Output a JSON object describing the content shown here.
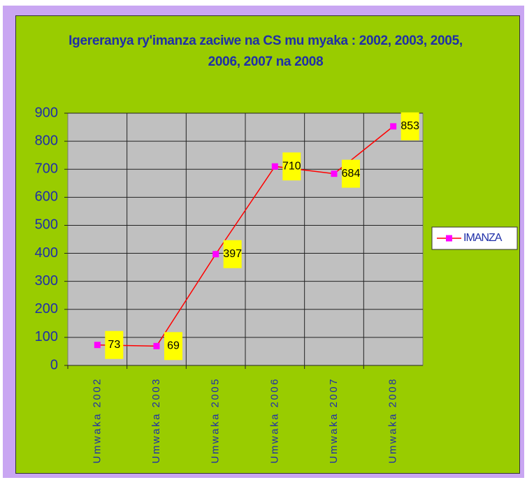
{
  "chart_data": {
    "type": "line",
    "title": "Igereranya ry'imanza zaciwe na CS mu myaka : 2002, 2003, 2005, 2006, 2007 na 2008",
    "categories": [
      "Umwaka 2002",
      "Umwaka 2003",
      "Umwaka 2005",
      "Umwaka 2006",
      "Umwaka 2007",
      "Umwaka 2008"
    ],
    "series": [
      {
        "name": "IMANZA",
        "color": "#ff0000",
        "marker_color": "#ff00ff",
        "values": [
          73,
          69,
          397,
          710,
          684,
          853
        ]
      }
    ],
    "ylim": [
      0,
      900
    ],
    "yticks": [
      0,
      100,
      200,
      300,
      400,
      500,
      600,
      700,
      800,
      900
    ],
    "grid": true,
    "legend": "right"
  }
}
